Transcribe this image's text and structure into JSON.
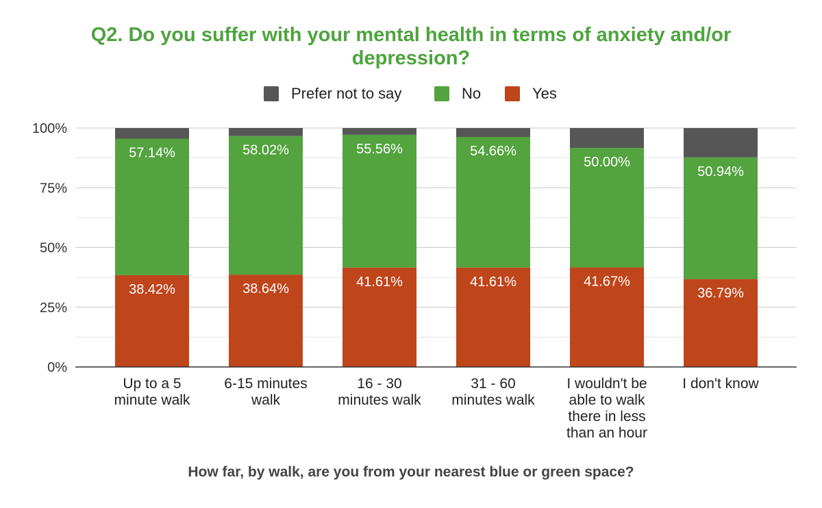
{
  "chart_data": {
    "type": "bar",
    "stacked": true,
    "title_lines": [
      "Q2. Do you suffer with your mental health in terms of anxiety and/or",
      "depression?"
    ],
    "xlabel": "How far, by walk, are you from your nearest blue or green space?",
    "ylabel": "",
    "ylim": [
      0,
      100
    ],
    "y_ticks": [
      "0%",
      "25%",
      "50%",
      "75%",
      "100%"
    ],
    "grid": true,
    "legend_position": "top",
    "categories": [
      [
        "Up to a 5",
        "minute walk"
      ],
      [
        "6-15 minutes",
        "walk"
      ],
      [
        "16 - 30",
        "minutes walk"
      ],
      [
        "31 - 60",
        "minutes walk"
      ],
      [
        "I wouldn't be",
        "able to walk",
        "there in less",
        "than an hour"
      ],
      [
        "I don't know"
      ]
    ],
    "series": [
      {
        "name": "Yes",
        "color": "#bf451b",
        "values": [
          38.42,
          38.64,
          41.61,
          41.61,
          41.67,
          36.79
        ],
        "labels": [
          "38.42%",
          "38.64%",
          "41.61%",
          "41.61%",
          "41.67%",
          "36.79%"
        ]
      },
      {
        "name": "No",
        "color": "#53a33f",
        "values": [
          57.14,
          58.02,
          55.56,
          54.66,
          50.0,
          50.94
        ],
        "labels": [
          "57.14%",
          "58.02%",
          "55.56%",
          "54.66%",
          "50.00%",
          "50.94%"
        ]
      },
      {
        "name": "Prefer not to say",
        "color": "#565656",
        "values": [
          4.44,
          3.34,
          2.83,
          3.73,
          8.33,
          12.27
        ],
        "labels": [
          "",
          "",
          "",
          "",
          "",
          ""
        ]
      }
    ],
    "legend_order": [
      "Prefer not to say",
      "No",
      "Yes"
    ]
  }
}
